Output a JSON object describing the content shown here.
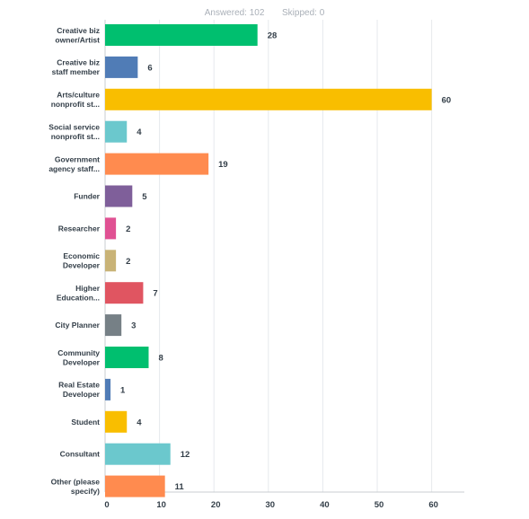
{
  "summary": {
    "answered": "Answered: 102",
    "skipped": "Skipped: 0"
  },
  "colors": {
    "grid": "#e6e9ec",
    "axis": "#c8ccd0",
    "text": "#333e48"
  },
  "chart_data": {
    "type": "bar",
    "orientation": "horizontal",
    "categories": [
      [
        "Creative biz",
        "owner/Artist"
      ],
      [
        "Creative biz",
        "staff member"
      ],
      [
        "Arts/culture",
        "nonprofit st..."
      ],
      [
        "Social service",
        "nonprofit st..."
      ],
      [
        "Government",
        "agency staff..."
      ],
      [
        "Funder"
      ],
      [
        "Researcher"
      ],
      [
        "Economic",
        "Developer"
      ],
      [
        "Higher",
        "Education..."
      ],
      [
        "City Planner"
      ],
      [
        "Community",
        "Developer"
      ],
      [
        "Real Estate",
        "Developer"
      ],
      [
        "Student"
      ],
      [
        "Consultant"
      ],
      [
        "Other (please",
        "specify)"
      ]
    ],
    "values": [
      28,
      6,
      60,
      4,
      19,
      5,
      2,
      2,
      7,
      3,
      8,
      1,
      4,
      12,
      11
    ],
    "bar_colors": [
      "#00bf6f",
      "#507cb6",
      "#f9be00",
      "#6bc8cd",
      "#ff8b4f",
      "#7f5f9a",
      "#e05193",
      "#c9b377",
      "#e05561",
      "#768086",
      "#00bf6f",
      "#507cb6",
      "#f9be00",
      "#6bc8cd",
      "#ff8b4f"
    ],
    "xlim": [
      0,
      66
    ],
    "xticks": [
      0,
      10,
      20,
      30,
      40,
      50,
      60
    ],
    "grid": true,
    "title": "",
    "xlabel": "",
    "ylabel": ""
  }
}
